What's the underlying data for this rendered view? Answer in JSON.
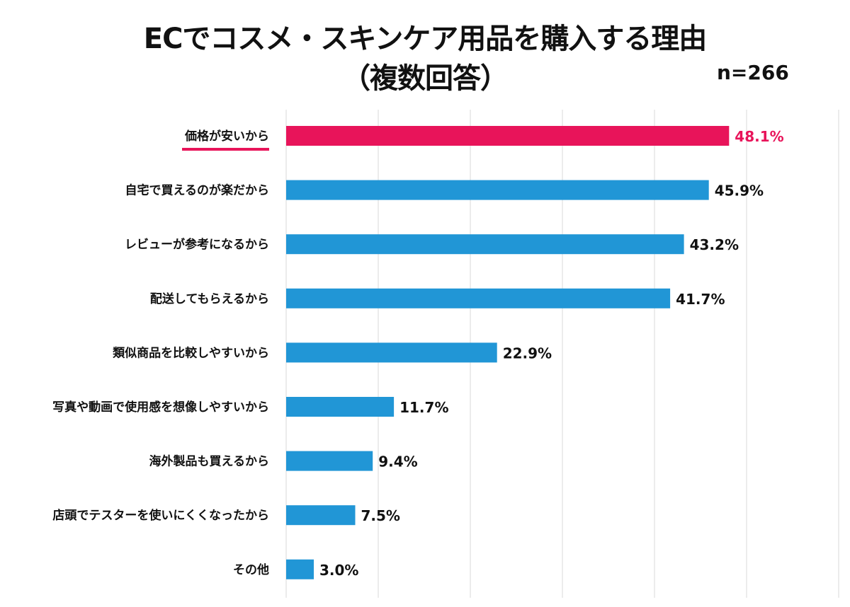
{
  "chart_data": {
    "type": "bar",
    "orientation": "horizontal",
    "title": "ECでコスメ・スキンケア用品を購入する理由",
    "subtitle": "（複数回答）",
    "sample_size": "n=266",
    "categories": [
      "価格が安いから",
      "自宅で買えるのが楽だから",
      "レビューが参考になるから",
      "配送してもらえるから",
      "類似商品を比較しやすいから",
      "写真や動画で使用感を想像しやすいから",
      "海外製品も買えるから",
      "店頭でテスターを使いにくくなったから",
      "その他"
    ],
    "values": [
      48.1,
      45.9,
      43.2,
      41.7,
      22.9,
      11.7,
      9.4,
      7.5,
      3.0
    ],
    "value_labels": [
      "48.1%",
      "45.9%",
      "43.2%",
      "41.7%",
      "22.9%",
      "11.7%",
      "9.4%",
      "7.5%",
      "3.0%"
    ],
    "unit": "%",
    "xlim": [
      0,
      60
    ],
    "grid": true,
    "highlight_index": 0,
    "colors": {
      "bar": "#2196d6",
      "highlight": "#e8145a",
      "grid": "#d9d9d9"
    }
  }
}
